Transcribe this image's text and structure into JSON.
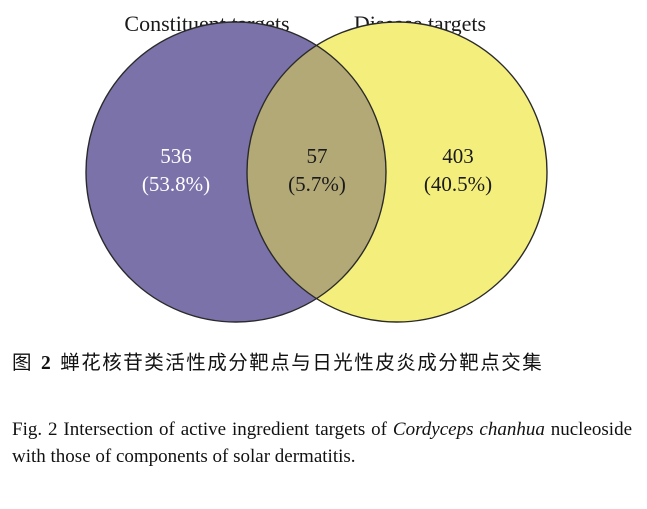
{
  "diagram": {
    "type": "venn",
    "sets": [
      {
        "title": "Constituent targets",
        "count": "536",
        "percent": "(53.8%)",
        "color": "#7b72aa",
        "text_color": "#ffffff"
      },
      {
        "title": "Disease targets",
        "count": "403",
        "percent": "(40.5%)",
        "color": "#f4ef7c",
        "text_color": "#1a1a1a"
      }
    ],
    "intersection": {
      "count": "57",
      "percent": "(5.7%)",
      "color": "#b3a977",
      "text_color": "#1a1a1a"
    },
    "outline_color": "#2a2a2a"
  },
  "caption_cn": {
    "label": "图",
    "number": "2",
    "text": "蝉花核苷类活性成分靶点与日光性皮炎成分靶点交集"
  },
  "caption_en": {
    "prefix": "Fig. 2 Intersection of active ingredient targets of",
    "species": "Cordyceps chanhua",
    "suffix": "nucleoside with those of components of solar dermatitis."
  }
}
